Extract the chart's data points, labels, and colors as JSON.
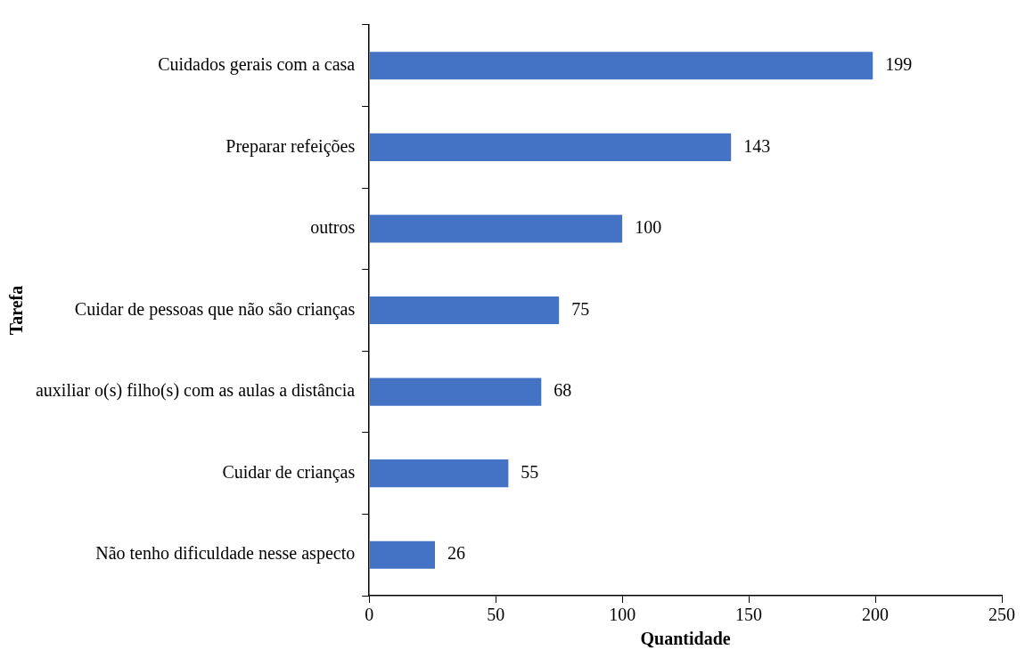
{
  "chart_data": {
    "type": "bar",
    "orientation": "horizontal",
    "xlabel": "Quantidade",
    "ylabel": "Tarefa",
    "categories": [
      "Cuidados gerais com a casa",
      "Preparar refeições",
      "outros",
      "Cuidar de pessoas que não são crianças",
      "auxiliar o(s) filho(s) com as aulas a distância",
      "Cuidar de crianças",
      "Não tenho dificuldade nesse aspecto"
    ],
    "values": [
      199,
      143,
      100,
      75,
      68,
      55,
      26
    ],
    "color": "#4472c4",
    "xlim": [
      0,
      250
    ],
    "xticks": [
      0,
      50,
      100,
      150,
      200,
      250
    ],
    "data_labels": true,
    "grid": false,
    "legend": false
  }
}
